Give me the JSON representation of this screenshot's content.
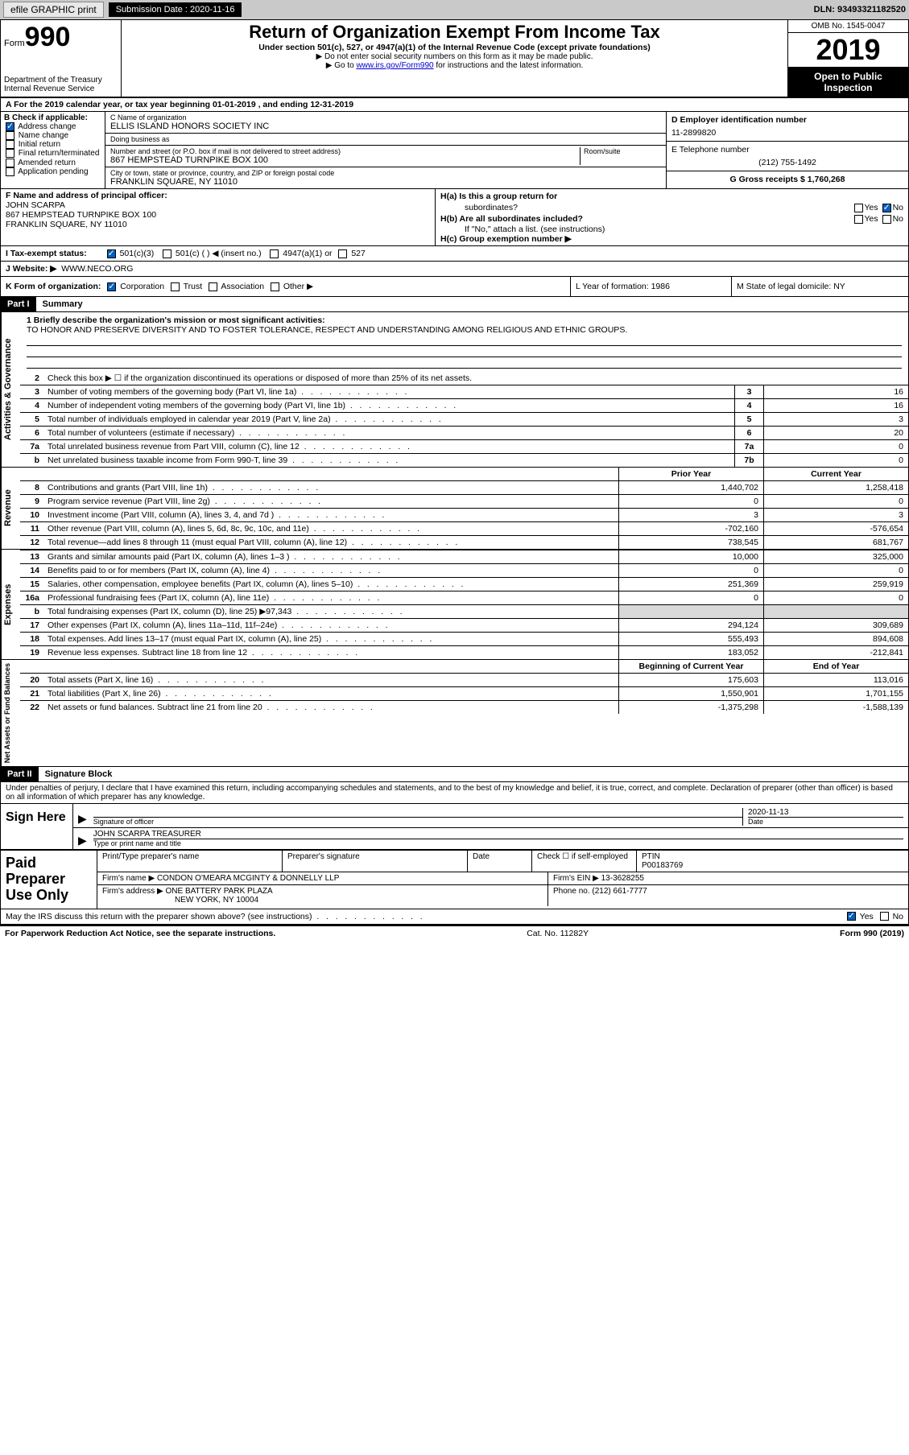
{
  "topbar": {
    "efile": "efile GRAPHIC print",
    "submission_label": "Submission Date : 2020-11-16",
    "dln": "DLN: 93493321182520"
  },
  "header": {
    "form_word": "Form",
    "form_num": "990",
    "dept": "Department of the Treasury\nInternal Revenue Service",
    "title": "Return of Organization Exempt From Income Tax",
    "sub": "Under section 501(c), 527, or 4947(a)(1) of the Internal Revenue Code (except private foundations)",
    "note1": "Do not enter social security numbers on this form as it may be made public.",
    "note2_pre": "Go to ",
    "note2_link": "www.irs.gov/Form990",
    "note2_post": " for instructions and the latest information.",
    "omb": "OMB No. 1545-0047",
    "year": "2019",
    "inspection": "Open to Public Inspection"
  },
  "period": "A   For the 2019 calendar year, or tax year beginning 01-01-2019     , and ending 12-31-2019",
  "colB": {
    "hdr": "B Check if applicable:",
    "items": [
      "Address change",
      "Name change",
      "Initial return",
      "Final return/terminated",
      "Amended return",
      "Application pending"
    ],
    "checked_idx": 0
  },
  "colC": {
    "name_hdr": "C Name of organization",
    "name": "ELLIS ISLAND HONORS SOCIETY INC",
    "dba_hdr": "Doing business as",
    "dba": "",
    "addr_hdr": "Number and street (or P.O. box if mail is not delivered to street address)",
    "addr": "867 HEMPSTEAD TURNPIKE BOX 100",
    "suite_hdr": "Room/suite",
    "city_hdr": "City or town, state or province, country, and ZIP or foreign postal code",
    "city": "FRANKLIN SQUARE, NY  11010"
  },
  "colDE": {
    "d_hdr": "D Employer identification number",
    "ein": "11-2899820",
    "e_hdr": "E Telephone number",
    "phone": "(212) 755-1492",
    "g": "G Gross receipts $ 1,760,268"
  },
  "F": {
    "hdr": "F  Name and address of principal officer:",
    "name": "JOHN SCARPA",
    "addr1": "867 HEMPSTEAD TURNPIKE BOX 100",
    "addr2": "FRANKLIN SQUARE, NY  11010"
  },
  "H": {
    "a": "H(a)  Is this a group return for",
    "a2": "subordinates?",
    "b": "H(b)  Are all subordinates included?",
    "b_note": "If \"No,\" attach a list. (see instructions)",
    "c": "H(c)  Group exemption number ▶"
  },
  "I": {
    "label": "I   Tax-exempt status:",
    "opts": [
      "501(c)(3)",
      "501(c) (  ) ◀ (insert no.)",
      "4947(a)(1) or",
      "527"
    ]
  },
  "J": {
    "label": "J   Website: ▶",
    "value": "WWW.NECO.ORG"
  },
  "K": {
    "label": "K Form of organization:",
    "opts": [
      "Corporation",
      "Trust",
      "Association",
      "Other ▶"
    ]
  },
  "L": {
    "label": "L Year of formation: 1986"
  },
  "M": {
    "label": "M State of legal domicile: NY"
  },
  "partI": {
    "hdr": "Part I",
    "title": "Summary",
    "side_ag": "Activities & Governance",
    "side_rev": "Revenue",
    "side_exp": "Expenses",
    "side_na": "Net Assets or Fund Balances",
    "q1_label": "1  Briefly describe the organization's mission or most significant activities:",
    "q1_text": "TO HONOR AND PRESERVE DIVERSITY AND TO FOSTER TOLERANCE, RESPECT AND UNDERSTANDING AMONG RELIGIOUS AND ETHNIC GROUPS.",
    "q2": "Check this box ▶ ☐  if the organization discontinued its operations or disposed of more than 25% of its net assets.",
    "prior_hdr": "Prior Year",
    "curr_hdr": "Current Year",
    "boy_hdr": "Beginning of Current Year",
    "eoy_hdr": "End of Year",
    "ag_lines": [
      {
        "n": "3",
        "d": "Number of voting members of the governing body (Part VI, line 1a)",
        "box": "3",
        "v": "16"
      },
      {
        "n": "4",
        "d": "Number of independent voting members of the governing body (Part VI, line 1b)",
        "box": "4",
        "v": "16"
      },
      {
        "n": "5",
        "d": "Total number of individuals employed in calendar year 2019 (Part V, line 2a)",
        "box": "5",
        "v": "3"
      },
      {
        "n": "6",
        "d": "Total number of volunteers (estimate if necessary)",
        "box": "6",
        "v": "20"
      },
      {
        "n": "7a",
        "d": "Total unrelated business revenue from Part VIII, column (C), line 12",
        "box": "7a",
        "v": "0"
      },
      {
        "n": "b",
        "d": "Net unrelated business taxable income from Form 990-T, line 39",
        "box": "7b",
        "v": "0"
      }
    ],
    "rev_lines": [
      {
        "n": "8",
        "d": "Contributions and grants (Part VIII, line 1h)",
        "p": "1,440,702",
        "c": "1,258,418"
      },
      {
        "n": "9",
        "d": "Program service revenue (Part VIII, line 2g)",
        "p": "0",
        "c": "0"
      },
      {
        "n": "10",
        "d": "Investment income (Part VIII, column (A), lines 3, 4, and 7d )",
        "p": "3",
        "c": "3"
      },
      {
        "n": "11",
        "d": "Other revenue (Part VIII, column (A), lines 5, 6d, 8c, 9c, 10c, and 11e)",
        "p": "-702,160",
        "c": "-576,654"
      },
      {
        "n": "12",
        "d": "Total revenue—add lines 8 through 11 (must equal Part VIII, column (A), line 12)",
        "p": "738,545",
        "c": "681,767"
      }
    ],
    "exp_lines": [
      {
        "n": "13",
        "d": "Grants and similar amounts paid (Part IX, column (A), lines 1–3 )",
        "p": "10,000",
        "c": "325,000"
      },
      {
        "n": "14",
        "d": "Benefits paid to or for members (Part IX, column (A), line 4)",
        "p": "0",
        "c": "0"
      },
      {
        "n": "15",
        "d": "Salaries, other compensation, employee benefits (Part IX, column (A), lines 5–10)",
        "p": "251,369",
        "c": "259,919"
      },
      {
        "n": "16a",
        "d": "Professional fundraising fees (Part IX, column (A), line 11e)",
        "p": "0",
        "c": "0"
      },
      {
        "n": "b",
        "d": "Total fundraising expenses (Part IX, column (D), line 25) ▶97,343",
        "p": "",
        "c": "",
        "grey": true
      },
      {
        "n": "17",
        "d": "Other expenses (Part IX, column (A), lines 11a–11d, 11f–24e)",
        "p": "294,124",
        "c": "309,689"
      },
      {
        "n": "18",
        "d": "Total expenses. Add lines 13–17 (must equal Part IX, column (A), line 25)",
        "p": "555,493",
        "c": "894,608"
      },
      {
        "n": "19",
        "d": "Revenue less expenses. Subtract line 18 from line 12",
        "p": "183,052",
        "c": "-212,841"
      }
    ],
    "na_lines": [
      {
        "n": "20",
        "d": "Total assets (Part X, line 16)",
        "p": "175,603",
        "c": "113,016"
      },
      {
        "n": "21",
        "d": "Total liabilities (Part X, line 26)",
        "p": "1,550,901",
        "c": "1,701,155"
      },
      {
        "n": "22",
        "d": "Net assets or fund balances. Subtract line 21 from line 20",
        "p": "-1,375,298",
        "c": "-1,588,139"
      }
    ]
  },
  "partII": {
    "hdr": "Part II",
    "title": "Signature Block",
    "decl": "Under penalties of perjury, I declare that I have examined this return, including accompanying schedules and statements, and to the best of my knowledge and belief, it is true, correct, and complete. Declaration of preparer (other than officer) is based on all information of which preparer has any knowledge.",
    "sign_here": "Sign Here",
    "sig_of_officer": "Signature of officer",
    "sig_date": "2020-11-13",
    "date_lbl": "Date",
    "officer": "JOHN SCARPA  TREASURER",
    "officer_lbl": "Type or print name and title"
  },
  "prep": {
    "label": "Paid Preparer Use Only",
    "h1": "Print/Type preparer's name",
    "h2": "Preparer's signature",
    "h3": "Date",
    "h4": "Check ☐ if self-employed",
    "h5": "PTIN",
    "ptin": "P00183769",
    "firm_name_lbl": "Firm's name    ▶",
    "firm_name": "CONDON O'MEARA MCGINTY & DONNELLY LLP",
    "firm_ein_lbl": "Firm's EIN ▶",
    "firm_ein": "13-3628255",
    "firm_addr_lbl": "Firm's address ▶",
    "firm_addr1": "ONE BATTERY PARK PLAZA",
    "firm_addr2": "NEW YORK, NY  10004",
    "phone_lbl": "Phone no.",
    "phone": "(212) 661-7777"
  },
  "discuss": "May the IRS discuss this return with the preparer shown above? (see instructions)",
  "footer": {
    "left": "For Paperwork Reduction Act Notice, see the separate instructions.",
    "mid": "Cat. No. 11282Y",
    "right": "Form 990 (2019)"
  },
  "yn": {
    "yes": "Yes",
    "no": "No"
  }
}
